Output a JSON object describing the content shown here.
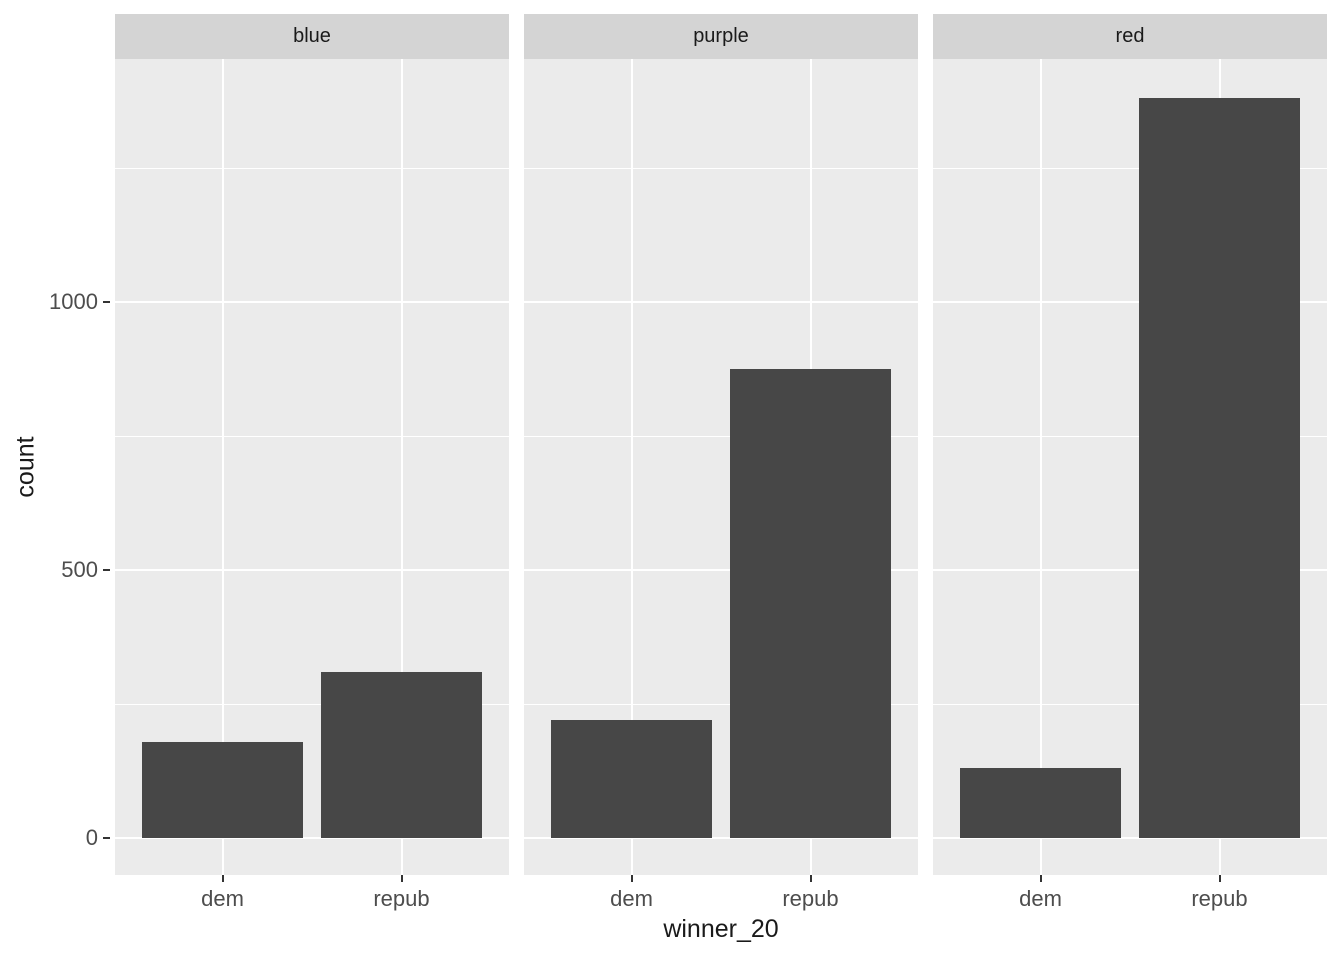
{
  "chart_data": {
    "type": "bar",
    "title": "",
    "xlabel": "winner_20",
    "ylabel": "count",
    "facets": [
      "blue",
      "purple",
      "red"
    ],
    "categories": [
      "dem",
      "repub"
    ],
    "series": [
      {
        "name": "blue",
        "values": [
          180,
          310
        ]
      },
      {
        "name": "purple",
        "values": [
          220,
          875
        ]
      },
      {
        "name": "red",
        "values": [
          130,
          1380
        ]
      }
    ],
    "y_ticks": [
      0,
      500,
      1000
    ],
    "ytick_labels": [
      "0",
      "500",
      "1000"
    ],
    "y_minor_ticks": [
      250,
      750,
      1250
    ],
    "ylim": [
      0,
      1450
    ],
    "grid": true,
    "legend_position": "none",
    "colors": {
      "bar_fill": "#474747",
      "panel_background": "#EBEBEB",
      "strip_background": "#D4D4D4",
      "gridline": "#FFFFFF",
      "axis_text": "#4D4D4D",
      "title_text": "#1A1A1A",
      "tick_mark": "#333333",
      "figure_background": "#FFFFFF"
    }
  }
}
